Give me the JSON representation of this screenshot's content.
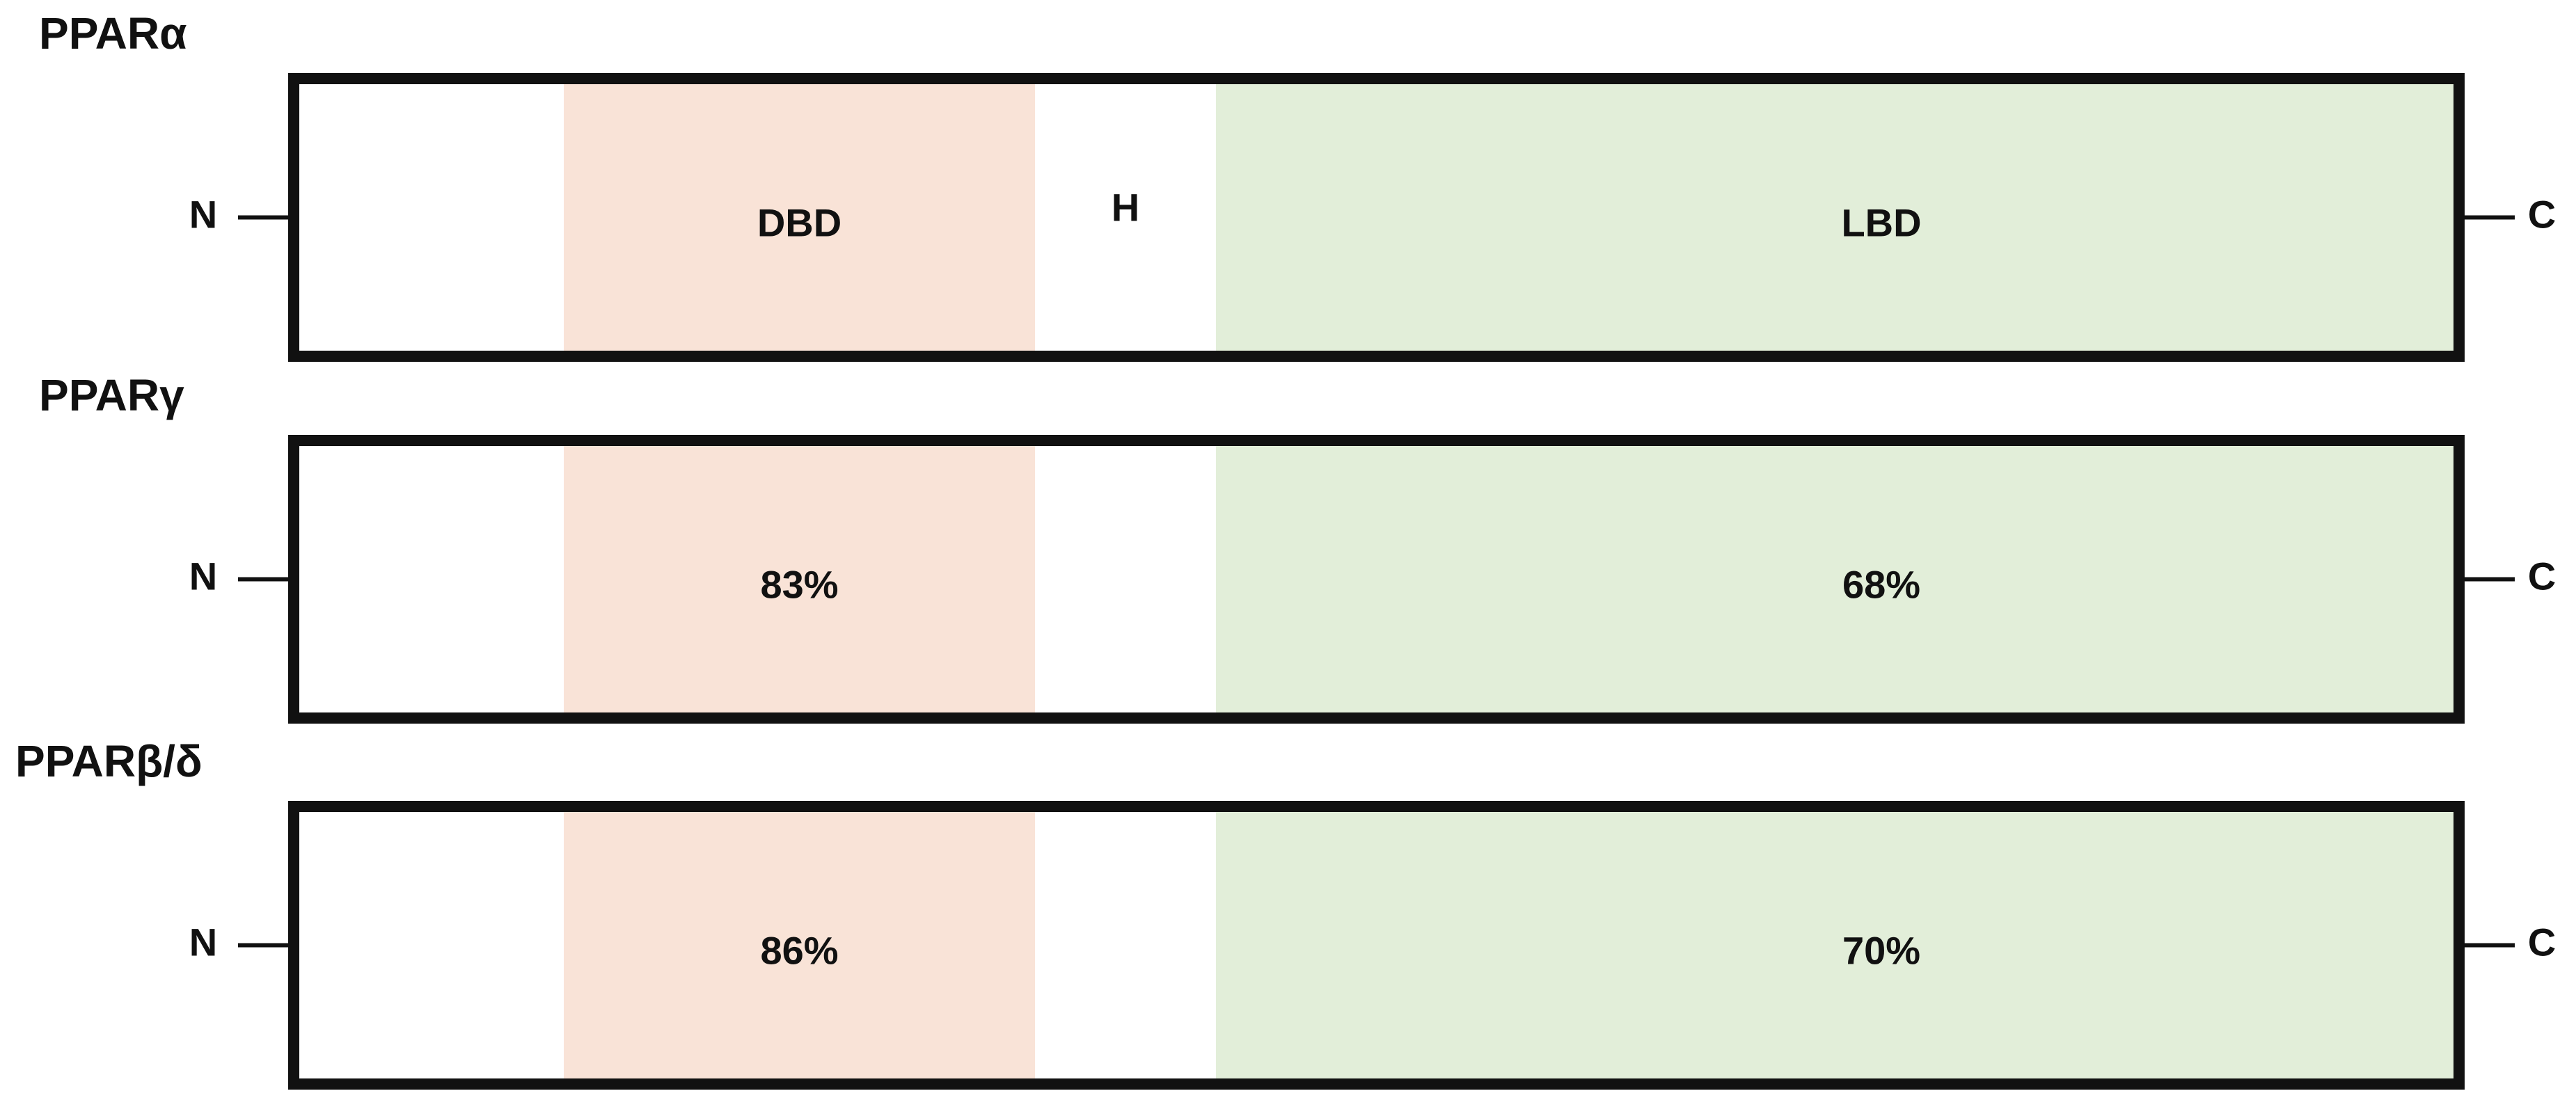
{
  "proteins": [
    {
      "name": "PPARα",
      "n_terminus": "N",
      "c_terminus": "C",
      "dbd_label": "DBD",
      "hinge_label": "H",
      "lbd_label": "LBD"
    },
    {
      "name": "PPARγ",
      "n_terminus": "N",
      "c_terminus": "C",
      "dbd_label": "83%",
      "lbd_label": "68%"
    },
    {
      "name": "PPARβ/δ",
      "n_terminus": "N",
      "c_terminus": "C",
      "dbd_label": "86%",
      "lbd_label": "70%"
    }
  ]
}
